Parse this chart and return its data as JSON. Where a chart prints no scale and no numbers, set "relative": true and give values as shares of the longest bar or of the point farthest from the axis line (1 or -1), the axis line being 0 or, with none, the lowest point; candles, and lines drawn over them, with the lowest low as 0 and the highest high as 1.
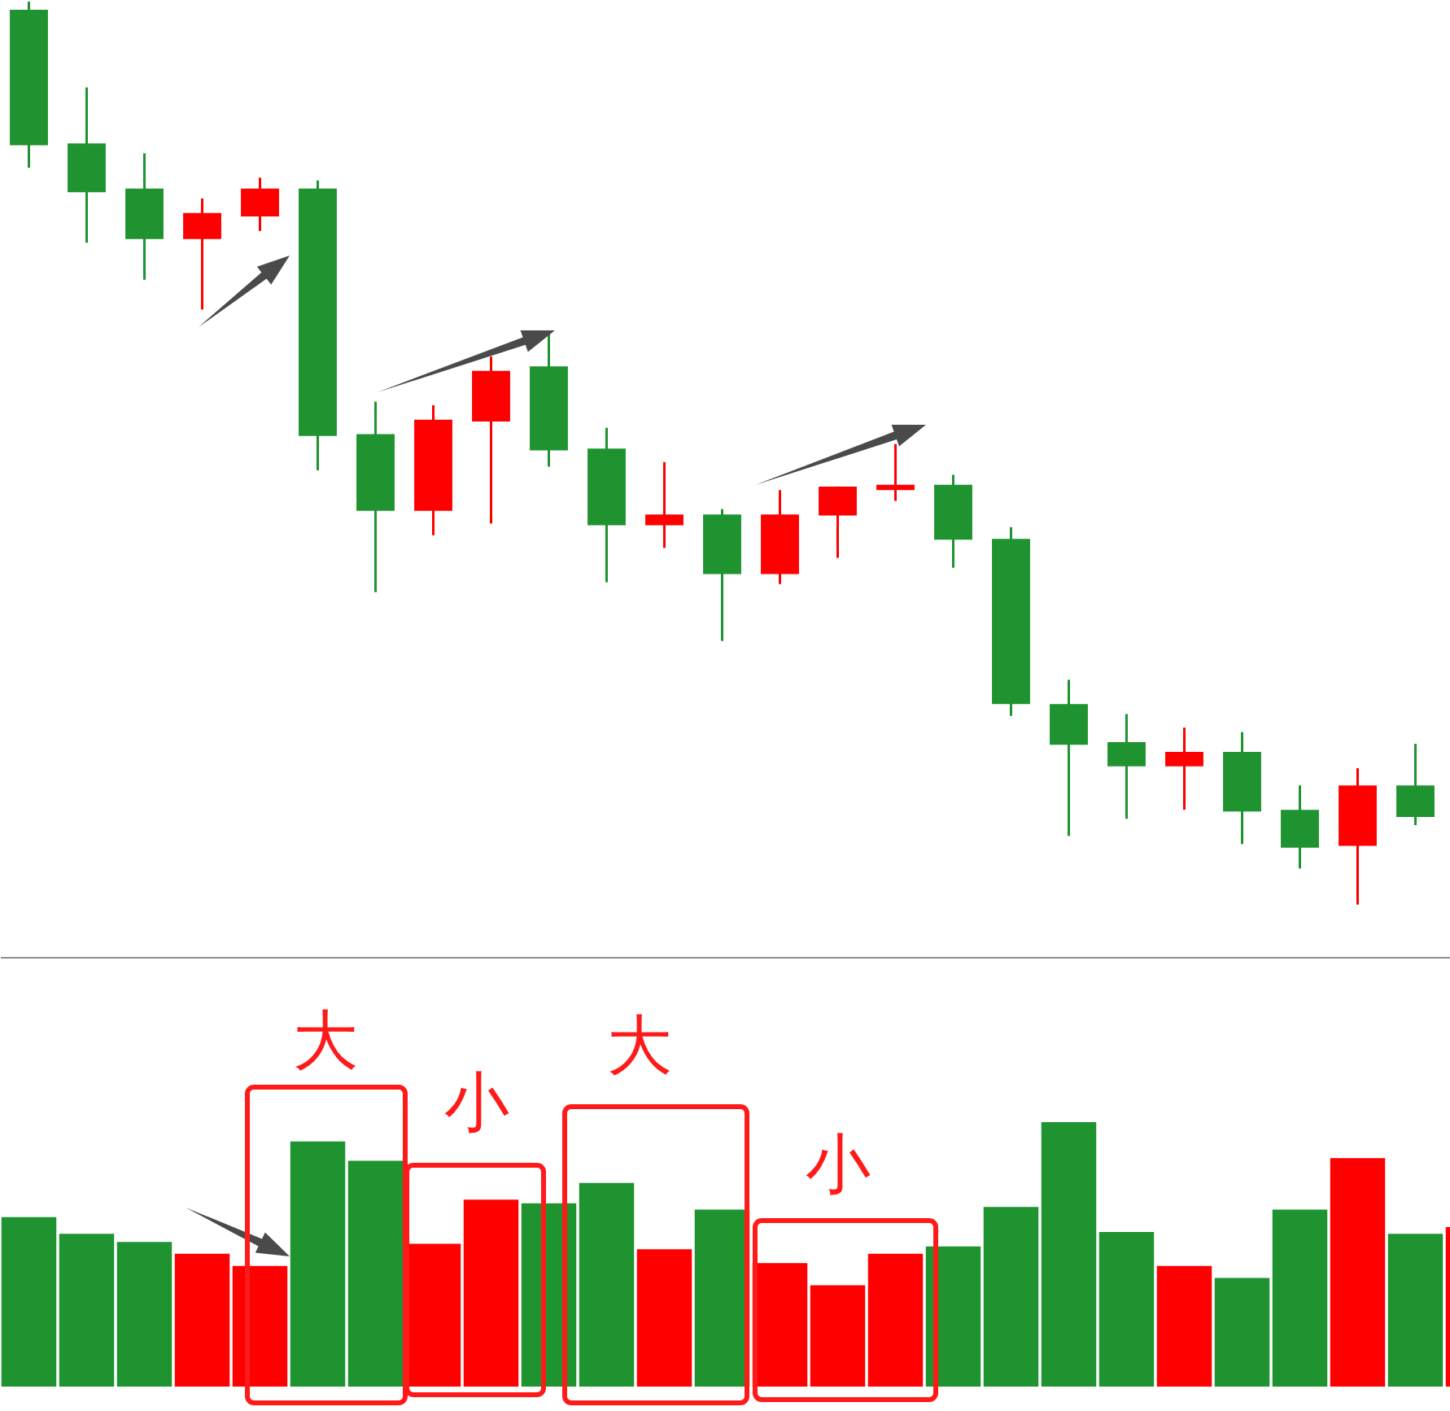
{
  "chart_data": [
    {
      "type": "candlestick",
      "relative": true,
      "categories": [
        null,
        null,
        null,
        null,
        null,
        null,
        null,
        null,
        null,
        null,
        null,
        null,
        null,
        null,
        null,
        null,
        null,
        null,
        null,
        null,
        null,
        null,
        null,
        null,
        null,
        null
      ],
      "ohlc": [
        [
          0.991,
          1,
          0.816,
          0.841
        ],
        [
          0.843,
          0.905,
          0.733,
          0.789
        ],
        [
          0.793,
          0.832,
          0.692,
          0.737
        ],
        [
          0.737,
          0.782,
          0.659,
          0.766
        ],
        [
          0.762,
          0.805,
          0.746,
          0.793
        ],
        [
          0.793,
          0.802,
          0.481,
          0.519
        ],
        [
          0.521,
          0.557,
          0.346,
          0.436
        ],
        [
          0.436,
          0.553,
          0.409,
          0.537
        ],
        [
          0.535,
          0.607,
          0.422,
          0.591
        ],
        [
          0.596,
          0.634,
          0.485,
          0.503
        ],
        [
          0.505,
          0.528,
          0.357,
          0.42
        ],
        [
          0.42,
          0.49,
          0.395,
          0.432
        ],
        [
          0.432,
          0.438,
          0.292,
          0.366
        ],
        [
          0.366,
          0.459,
          0.355,
          0.432
        ],
        [
          0.431,
          0.463,
          0.384,
          0.463
        ],
        [
          0.459,
          0.51,
          0.447,
          0.465
        ],
        [
          0.465,
          0.476,
          0.373,
          0.404
        ],
        [
          0.405,
          0.418,
          0.209,
          0.222
        ],
        [
          0.222,
          0.249,
          0.076,
          0.177
        ],
        [
          0.18,
          0.211,
          0.095,
          0.153
        ],
        [
          0.153,
          0.196,
          0.105,
          0.169
        ],
        [
          0.169,
          0.191,
          0.067,
          0.103
        ],
        [
          0.105,
          0.132,
          0.04,
          0.063
        ],
        [
          0.065,
          0.151,
          0,
          0.132
        ],
        [
          0.132,
          0.178,
          0.088,
          0.097
        ],
        null
      ],
      "colors": [
        "#1e932f",
        "#1e932f",
        "#1e932f",
        "#ff0000",
        "#ff0000",
        "#1e932f",
        "#1e932f",
        "#ff0000",
        "#ff0000",
        "#1e932f",
        "#1e932f",
        "#ff0000",
        "#1e932f",
        "#ff0000",
        "#ff0000",
        "#ff0000",
        "#1e932f",
        "#1e932f",
        "#1e932f",
        "#1e932f",
        "#ff0000",
        "#1e932f",
        "#1e932f",
        "#ff0000",
        "#1e932f",
        null
      ]
    },
    {
      "type": "bar",
      "relative": true,
      "categories": [
        null,
        null,
        null,
        null,
        null,
        null,
        null,
        null,
        null,
        null,
        null,
        null,
        null,
        null,
        null,
        null,
        null,
        null,
        null,
        null,
        null,
        null,
        null,
        null,
        null,
        null
      ],
      "values": [
        0.641,
        0.578,
        0.547,
        0.502,
        0.456,
        0.927,
        0.854,
        0.54,
        0.707,
        0.693,
        0.77,
        0.519,
        0.669,
        0.467,
        0.383,
        0.502,
        0.53,
        0.679,
        1,
        0.585,
        0.456,
        0.411,
        0.669,
        0.864,
        0.578,
        0.603
      ],
      "colors": [
        "#1e932f",
        "#1e932f",
        "#1e932f",
        "#ff0000",
        "#ff0000",
        "#1e932f",
        "#1e932f",
        "#ff0000",
        "#ff0000",
        "#1e932f",
        "#1e932f",
        "#ff0000",
        "#1e932f",
        "#ff0000",
        "#ff0000",
        "#ff0000",
        "#1e932f",
        "#1e932f",
        "#1e932f",
        "#1e932f",
        "#ff0000",
        "#1e932f",
        "#1e932f",
        "#ff0000",
        "#1e932f",
        "#ff0000"
      ],
      "annotations": [
        "大",
        "小",
        "大",
        "小"
      ]
    }
  ]
}
